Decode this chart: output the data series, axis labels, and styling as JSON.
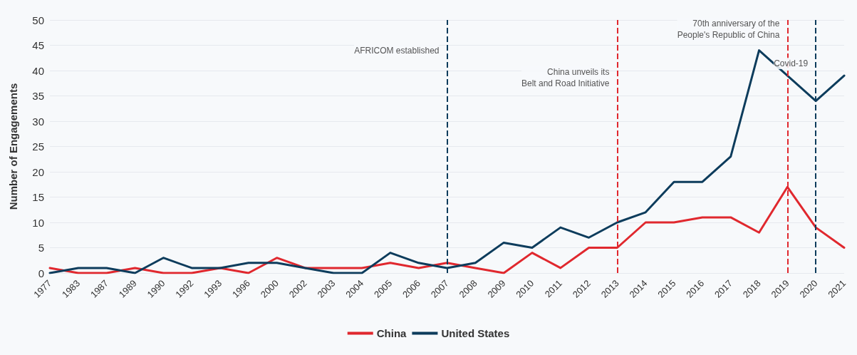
{
  "chart_data": {
    "type": "line",
    "ylabel": "Number of Engagements",
    "categories": [
      "1977",
      "1983",
      "1987",
      "1989",
      "1990",
      "1992",
      "1993",
      "1996",
      "2000",
      "2002",
      "2003",
      "2004",
      "2005",
      "2006",
      "2007",
      "2008",
      "2009",
      "2010",
      "2011",
      "2012",
      "2013",
      "2014",
      "2015",
      "2016",
      "2017",
      "2018",
      "2019",
      "2020",
      "2021"
    ],
    "series": [
      {
        "name": "China",
        "color": "#e0282e",
        "values": [
          1,
          0,
          0,
          1,
          0,
          0,
          1,
          0,
          3,
          1,
          1,
          1,
          2,
          1,
          2,
          1,
          0,
          4,
          1,
          5,
          5,
          10,
          10,
          11,
          11,
          8,
          17,
          9,
          5
        ]
      },
      {
        "name": "United States",
        "color": "#0d3c5c",
        "values": [
          0,
          1,
          1,
          0,
          3,
          1,
          1,
          2,
          2,
          1,
          0,
          0,
          4,
          2,
          1,
          2,
          6,
          5,
          9,
          7,
          10,
          12,
          18,
          18,
          23,
          44,
          39,
          34,
          39
        ]
      }
    ],
    "ylim": [
      0,
      50
    ],
    "yticks": [
      0,
      5,
      10,
      15,
      20,
      25,
      30,
      35,
      40,
      45,
      50
    ],
    "ref_lines": [
      {
        "axis": "x",
        "value": "2007",
        "label": "AFRICOM established",
        "color": "#0d3c5c",
        "line_style": "dashed"
      },
      {
        "axis": "x",
        "value": "2013",
        "label": "China unveils its\nBelt and Road Initiative",
        "color": "#e0282e",
        "line_style": "dashed"
      },
      {
        "axis": "x",
        "value": "2019",
        "label": "70th anniversary of the\nPeople's Republic of China",
        "color": "#e0282e",
        "line_style": "dashed"
      },
      {
        "axis": "x",
        "value": "2020",
        "label": "Covid-19",
        "color": "#0d3c5c",
        "line_style": "dashed"
      }
    ],
    "grid": "y",
    "legend": "bottom",
    "marker": "none",
    "line_style": "solid"
  }
}
